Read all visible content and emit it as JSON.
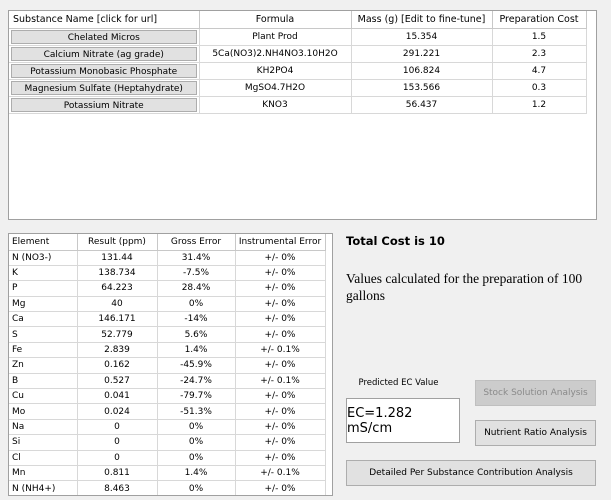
{
  "substances": {
    "headers": [
      "Substance Name [click for url]",
      "Formula",
      "Mass (g) [Edit to fine-tune]",
      "Preparation Cost"
    ],
    "rows": [
      {
        "name": "Chelated Micros",
        "formula": "Plant Prod",
        "mass": "15.354",
        "cost": "1.5"
      },
      {
        "name": "Calcium Nitrate (ag grade)",
        "formula": "5Ca(NO3)2.NH4NO3.10H2O",
        "mass": "291.221",
        "cost": "2.3"
      },
      {
        "name": "Potassium Monobasic Phosphate",
        "formula": "KH2PO4",
        "mass": "106.824",
        "cost": "4.7"
      },
      {
        "name": "Magnesium Sulfate (Heptahydrate)",
        "formula": "MgSO4.7H2O",
        "mass": "153.566",
        "cost": "0.3"
      },
      {
        "name": "Potassium Nitrate",
        "formula": "KNO3",
        "mass": "56.437",
        "cost": "1.2"
      }
    ]
  },
  "elements": {
    "headers": [
      "Element",
      "Result (ppm)",
      "Gross Error",
      "Instrumental Error"
    ],
    "rows": [
      {
        "element": "N (NO3-)",
        "result": "131.44",
        "gross": "31.4%",
        "instr": "+/- 0%"
      },
      {
        "element": "K",
        "result": "138.734",
        "gross": "-7.5%",
        "instr": "+/- 0%"
      },
      {
        "element": "P",
        "result": "64.223",
        "gross": "28.4%",
        "instr": "+/- 0%"
      },
      {
        "element": "Mg",
        "result": "40",
        "gross": "0%",
        "instr": "+/- 0%"
      },
      {
        "element": "Ca",
        "result": "146.171",
        "gross": "-14%",
        "instr": "+/- 0%"
      },
      {
        "element": "S",
        "result": "52.779",
        "gross": "5.6%",
        "instr": "+/- 0%"
      },
      {
        "element": "Fe",
        "result": "2.839",
        "gross": "1.4%",
        "instr": "+/- 0.1%"
      },
      {
        "element": "Zn",
        "result": "0.162",
        "gross": "-45.9%",
        "instr": "+/- 0%"
      },
      {
        "element": "B",
        "result": "0.527",
        "gross": "-24.7%",
        "instr": "+/- 0.1%"
      },
      {
        "element": "Cu",
        "result": "0.041",
        "gross": "-79.7%",
        "instr": "+/- 0%"
      },
      {
        "element": "Mo",
        "result": "0.024",
        "gross": "-51.3%",
        "instr": "+/- 0%"
      },
      {
        "element": "Na",
        "result": "0",
        "gross": "0%",
        "instr": "+/- 0%"
      },
      {
        "element": "Si",
        "result": "0",
        "gross": "0%",
        "instr": "+/- 0%"
      },
      {
        "element": "Cl",
        "result": "0",
        "gross": "0%",
        "instr": "+/- 0%"
      },
      {
        "element": "Mn",
        "result": "0.811",
        "gross": "1.4%",
        "instr": "+/- 0.1%"
      },
      {
        "element": "N (NH4+)",
        "result": "8.463",
        "gross": "0%",
        "instr": "+/- 0%"
      }
    ]
  },
  "summary": {
    "total_cost": "Total Cost is 10",
    "values_text": "Values calculated for the preparation of 100 gallons"
  },
  "ec": {
    "label": "Predicted EC Value",
    "value": "EC=1.282 mS/cm"
  },
  "buttons": {
    "stock": "Stock Solution Analysis",
    "ratio": "Nutrient Ratio Analysis",
    "detail": "Detailed Per Substance Contribution Analysis"
  }
}
